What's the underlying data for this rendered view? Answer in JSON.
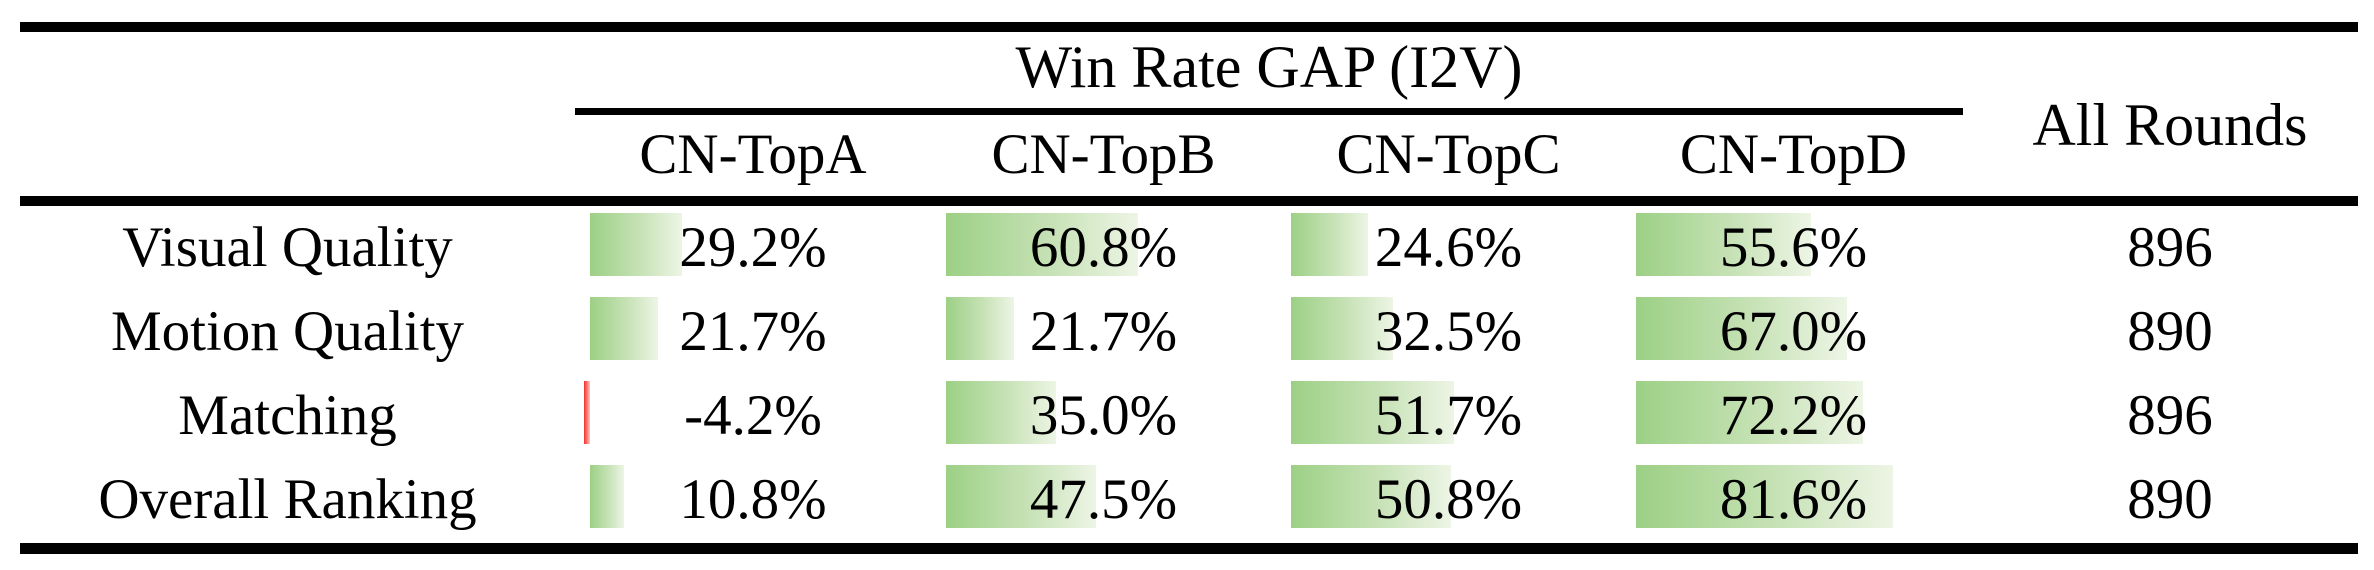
{
  "table": {
    "header": {
      "group_title": "Win Rate GAP (I2V)",
      "all_rounds_label": "All Rounds",
      "columns": [
        "CN-TopA",
        "CN-TopB",
        "CN-TopC",
        "CN-TopD"
      ]
    },
    "rows": [
      {
        "label": "Visual Quality",
        "cells": [
          {
            "value": 29.2,
            "display": "29.2%"
          },
          {
            "value": 60.8,
            "display": "60.8%"
          },
          {
            "value": 24.6,
            "display": "24.6%"
          },
          {
            "value": 55.6,
            "display": "55.6%"
          }
        ],
        "all_rounds": "896"
      },
      {
        "label": "Motion Quality",
        "cells": [
          {
            "value": 21.7,
            "display": "21.7%"
          },
          {
            "value": 21.7,
            "display": "21.7%"
          },
          {
            "value": 32.5,
            "display": "32.5%"
          },
          {
            "value": 67.0,
            "display": "67.0%"
          }
        ],
        "all_rounds": "890"
      },
      {
        "label": "Matching",
        "cells": [
          {
            "value": -4.2,
            "display": "-4.2%"
          },
          {
            "value": 35.0,
            "display": "35.0%"
          },
          {
            "value": 51.7,
            "display": "51.7%"
          },
          {
            "value": 72.2,
            "display": "72.2%"
          }
        ],
        "all_rounds": "896"
      },
      {
        "label": "Overall Ranking",
        "cells": [
          {
            "value": 10.8,
            "display": "10.8%"
          },
          {
            "value": 47.5,
            "display": "47.5%"
          },
          {
            "value": 50.8,
            "display": "50.8%"
          },
          {
            "value": 81.6,
            "display": "81.6%"
          }
        ],
        "all_rounds": "890"
      }
    ]
  },
  "colors": {
    "positive_bar_green": "#9cd085",
    "positive_bar_fade": "#edf5e5",
    "negative_bar_red": "#f03030",
    "rule_black": "#000000",
    "background": "#ffffff"
  },
  "chart_data": {
    "type": "table",
    "title": "Win Rate GAP (I2V)",
    "categories": [
      "Visual Quality",
      "Motion Quality",
      "Matching",
      "Overall Ranking"
    ],
    "series": [
      {
        "name": "CN-TopA",
        "values": [
          29.2,
          21.7,
          -4.2,
          10.8
        ]
      },
      {
        "name": "CN-TopB",
        "values": [
          60.8,
          21.7,
          35.0,
          47.5
        ]
      },
      {
        "name": "CN-TopC",
        "values": [
          24.6,
          32.5,
          51.7,
          50.8
        ]
      },
      {
        "name": "CN-TopD",
        "values": [
          55.6,
          67.0,
          72.2,
          81.6
        ]
      }
    ],
    "all_rounds": [
      896,
      890,
      896,
      890
    ],
    "value_unit": "%",
    "bar_scale_max_percent": 100
  }
}
